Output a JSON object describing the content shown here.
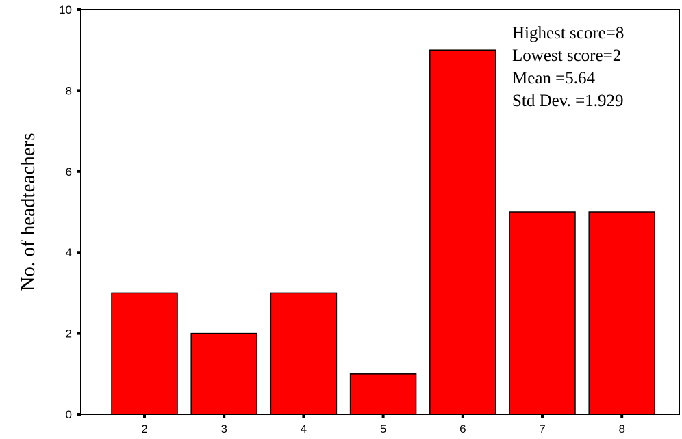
{
  "chart_data": {
    "type": "bar",
    "categories": [
      "2",
      "3",
      "4",
      "5",
      "6",
      "7",
      "8"
    ],
    "values": [
      3,
      2,
      3,
      1,
      9,
      5,
      5
    ],
    "title": "",
    "xlabel": "",
    "ylabel": "No. of headteachers",
    "ylim": [
      0,
      10
    ],
    "yticks": [
      "0",
      "2",
      "4",
      "6",
      "8",
      "10"
    ],
    "grid": false,
    "bar_color": "#ff0000",
    "bar_edge_color": "#000000",
    "annotations": [
      "Highest score=8",
      "Lowest score=2",
      "Mean =5.64",
      "Std Dev. =1.929"
    ]
  }
}
